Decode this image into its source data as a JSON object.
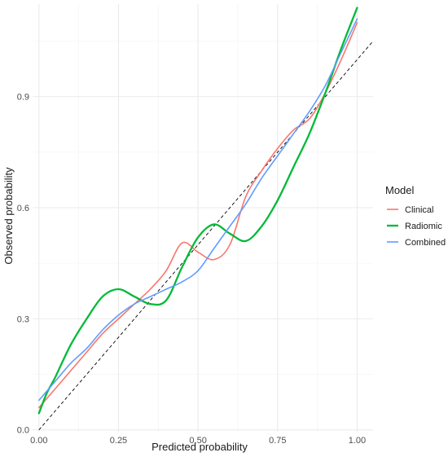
{
  "chart_data": {
    "type": "line",
    "xlabel": "Predicted probability",
    "ylabel": "Observed probability",
    "xlim": [
      -0.02,
      1.05
    ],
    "ylim": [
      -0.005,
      1.15
    ],
    "x_ticks": [
      0.0,
      0.25,
      0.5,
      0.75,
      1.0
    ],
    "x_tick_labels": [
      "0.00",
      "0.25",
      "0.50",
      "0.75",
      "1.00"
    ],
    "y_ticks": [
      0.0,
      0.3,
      0.6,
      0.9
    ],
    "y_tick_labels": [
      "0.0",
      "0.3",
      "0.6",
      "0.9"
    ],
    "grid": true,
    "legend": {
      "title": "Model",
      "placement": "right"
    },
    "reference_line": {
      "style": "dashed",
      "color": "#000000",
      "points": [
        [
          0.0,
          0.0
        ],
        [
          1.05,
          1.05
        ]
      ]
    },
    "series": [
      {
        "name": "Clinical",
        "color": "#F8766D",
        "x": [
          0.0,
          0.05,
          0.1,
          0.15,
          0.2,
          0.25,
          0.3,
          0.35,
          0.4,
          0.45,
          0.5,
          0.55,
          0.6,
          0.65,
          0.7,
          0.75,
          0.8,
          0.85,
          0.9,
          0.95,
          1.0
        ],
        "y": [
          0.06,
          0.11,
          0.16,
          0.21,
          0.26,
          0.3,
          0.34,
          0.38,
          0.43,
          0.505,
          0.48,
          0.46,
          0.5,
          0.63,
          0.7,
          0.76,
          0.81,
          0.84,
          0.91,
          1.0,
          1.1
        ]
      },
      {
        "name": "Radiomic",
        "color": "#00BA38",
        "x": [
          0.0,
          0.025,
          0.05,
          0.1,
          0.15,
          0.2,
          0.25,
          0.3,
          0.35,
          0.4,
          0.45,
          0.5,
          0.55,
          0.6,
          0.65,
          0.7,
          0.75,
          0.8,
          0.85,
          0.9,
          0.95,
          1.0
        ],
        "y": [
          0.045,
          0.1,
          0.14,
          0.23,
          0.3,
          0.36,
          0.38,
          0.36,
          0.34,
          0.35,
          0.44,
          0.52,
          0.555,
          0.53,
          0.51,
          0.55,
          0.62,
          0.71,
          0.8,
          0.91,
          1.03,
          1.14
        ]
      },
      {
        "name": "Combined",
        "color": "#619CFF",
        "x": [
          0.0,
          0.05,
          0.1,
          0.15,
          0.2,
          0.25,
          0.3,
          0.35,
          0.4,
          0.45,
          0.5,
          0.55,
          0.6,
          0.65,
          0.7,
          0.75,
          0.8,
          0.85,
          0.9,
          0.95,
          1.0
        ],
        "y": [
          0.08,
          0.13,
          0.18,
          0.22,
          0.27,
          0.31,
          0.34,
          0.36,
          0.38,
          0.4,
          0.43,
          0.49,
          0.55,
          0.61,
          0.68,
          0.74,
          0.8,
          0.86,
          0.93,
          1.02,
          1.11
        ]
      }
    ]
  }
}
